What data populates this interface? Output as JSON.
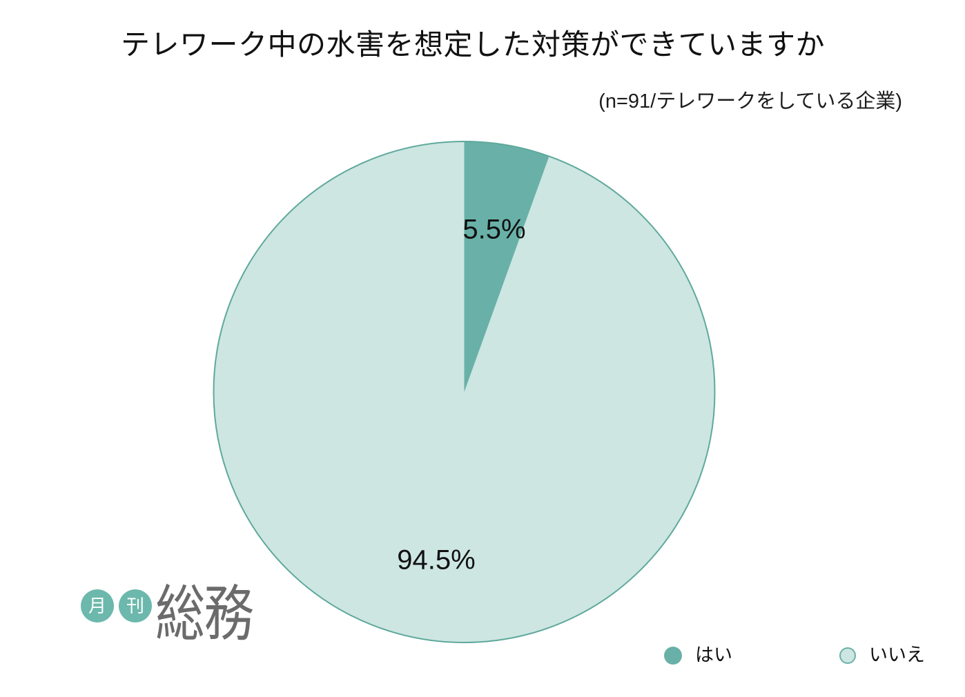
{
  "chart_data": {
    "type": "pie",
    "title": "テレワーク中の水害を想定した対策ができていますか",
    "subtitle": "(n=91/テレワークをしている企業)",
    "slices": [
      {
        "label": "はい",
        "value": 5.5,
        "display": "5.5%",
        "color": "#69B1A8"
      },
      {
        "label": "いいえ",
        "value": 94.5,
        "display": "94.5%",
        "color": "#CDE6E1"
      }
    ],
    "outline_color": "#5FA89D",
    "label_color": "#111111",
    "start_angle_deg": 0,
    "direction": "clockwise",
    "legend_position": "bottom-right",
    "background": "#FFFFFF"
  },
  "logo": {
    "circle_labels": [
      "月",
      "刊"
    ],
    "name": "総務",
    "accent_color": "#6CB8AC",
    "name_color": "#6B6B6B"
  }
}
